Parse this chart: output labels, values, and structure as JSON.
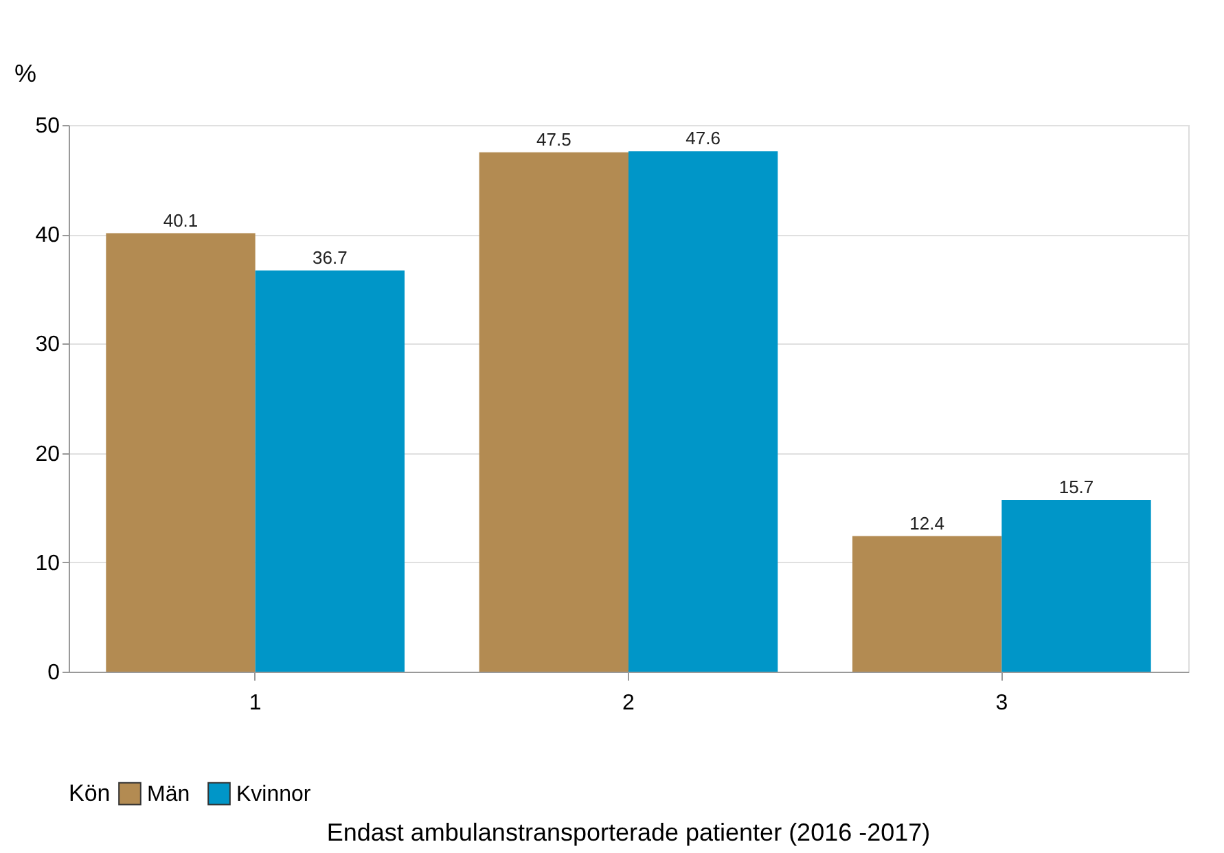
{
  "chart_data": {
    "type": "bar",
    "ylabel": "%",
    "categories": [
      "1",
      "2",
      "3"
    ],
    "series": [
      {
        "name": "Män",
        "color": "#b38b52",
        "values": [
          40.1,
          47.5,
          12.4
        ]
      },
      {
        "name": "Kvinnor",
        "color": "#0096c8",
        "values": [
          36.7,
          47.6,
          15.7
        ]
      }
    ],
    "ylim": [
      0,
      50
    ],
    "yticks": [
      0,
      10,
      20,
      30,
      40,
      50
    ],
    "grid": "y",
    "legend": "bottom",
    "legend_title": "Kön",
    "data_labels": true,
    "annotations": [
      "Endast ambulanstransporterade patienter (2016 -2017)"
    ]
  }
}
